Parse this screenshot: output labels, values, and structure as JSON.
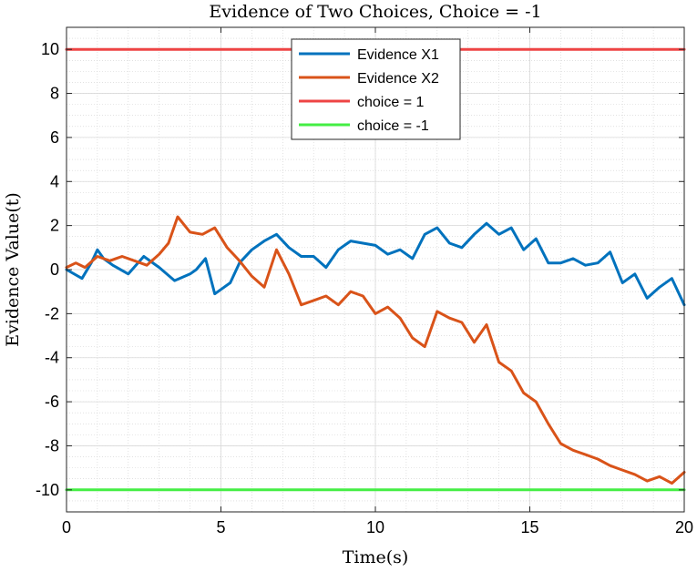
{
  "chart_data": {
    "type": "line",
    "title": "Evidence of Two Choices, Choice = -1",
    "xlabel": "Time(s)",
    "ylabel": "Evidence Value(t)",
    "xlim": [
      0,
      20
    ],
    "ylim": [
      -11,
      11
    ],
    "xticks": [
      0,
      5,
      10,
      15,
      20
    ],
    "yticks": [
      -10,
      -8,
      -6,
      -4,
      -2,
      0,
      2,
      4,
      6,
      8,
      10
    ],
    "grid": true,
    "minor_grid": true,
    "legend_position": "top-center",
    "series": [
      {
        "name": "Evidence X1",
        "color": "#0072BD",
        "x": [
          0,
          0.5,
          0.8,
          1.0,
          1.2,
          1.5,
          2.0,
          2.5,
          3.0,
          3.5,
          4.0,
          4.2,
          4.5,
          4.8,
          5.0,
          5.3,
          5.6,
          6.0,
          6.4,
          6.8,
          7.2,
          7.6,
          8.0,
          8.4,
          8.8,
          9.2,
          9.6,
          10.0,
          10.4,
          10.8,
          11.2,
          11.6,
          12.0,
          12.4,
          12.8,
          13.2,
          13.6,
          14.0,
          14.4,
          14.8,
          15.2,
          15.6,
          16.0,
          16.4,
          16.8,
          17.2,
          17.6,
          18.0,
          18.4,
          18.8,
          19.2,
          19.6,
          20.0
        ],
        "y": [
          0.0,
          -0.4,
          0.3,
          0.9,
          0.5,
          0.2,
          -0.2,
          0.6,
          0.1,
          -0.5,
          -0.2,
          0.0,
          0.5,
          -1.1,
          -0.9,
          -0.6,
          0.3,
          0.9,
          1.3,
          1.6,
          1.0,
          0.6,
          0.6,
          0.1,
          0.9,
          1.3,
          1.2,
          1.1,
          0.7,
          0.9,
          0.5,
          1.6,
          1.9,
          1.2,
          1.0,
          1.6,
          2.1,
          1.6,
          1.9,
          0.9,
          1.4,
          0.3,
          0.3,
          0.5,
          0.2,
          0.3,
          0.8,
          -0.6,
          -0.2,
          -1.3,
          -0.8,
          -0.4,
          -1.6
        ]
      },
      {
        "name": "Evidence X2",
        "color": "#D95319",
        "x": [
          0,
          0.3,
          0.6,
          1.0,
          1.4,
          1.8,
          2.2,
          2.6,
          3.0,
          3.3,
          3.6,
          4.0,
          4.4,
          4.8,
          5.2,
          5.6,
          6.0,
          6.4,
          6.8,
          7.2,
          7.6,
          8.0,
          8.4,
          8.8,
          9.2,
          9.6,
          10.0,
          10.4,
          10.8,
          11.2,
          11.6,
          12.0,
          12.4,
          12.8,
          13.2,
          13.6,
          14.0,
          14.4,
          14.8,
          15.2,
          15.6,
          16.0,
          16.4,
          16.8,
          17.2,
          17.6,
          18.0,
          18.4,
          18.8,
          19.2,
          19.6,
          20.0
        ],
        "y": [
          0.1,
          0.3,
          0.1,
          0.6,
          0.4,
          0.6,
          0.4,
          0.2,
          0.7,
          1.2,
          2.4,
          1.7,
          1.6,
          1.9,
          1.0,
          0.4,
          -0.3,
          -0.8,
          0.9,
          -0.2,
          -1.6,
          -1.4,
          -1.2,
          -1.6,
          -1.0,
          -1.2,
          -2.0,
          -1.7,
          -2.2,
          -3.1,
          -3.5,
          -1.9,
          -2.2,
          -2.4,
          -3.3,
          -2.5,
          -4.2,
          -4.6,
          -5.6,
          -6.0,
          -7.0,
          -7.9,
          -8.2,
          -8.4,
          -8.6,
          -8.9,
          -9.1,
          -9.3,
          -9.6,
          -9.4,
          -9.7,
          -9.2
        ]
      },
      {
        "name": "choice = 1",
        "color": "#EE4444",
        "x": [
          0,
          20
        ],
        "y": [
          10,
          10
        ]
      },
      {
        "name": "choice = -1",
        "color": "#44EE44",
        "x": [
          0,
          20
        ],
        "y": [
          -10,
          -10
        ]
      }
    ]
  }
}
